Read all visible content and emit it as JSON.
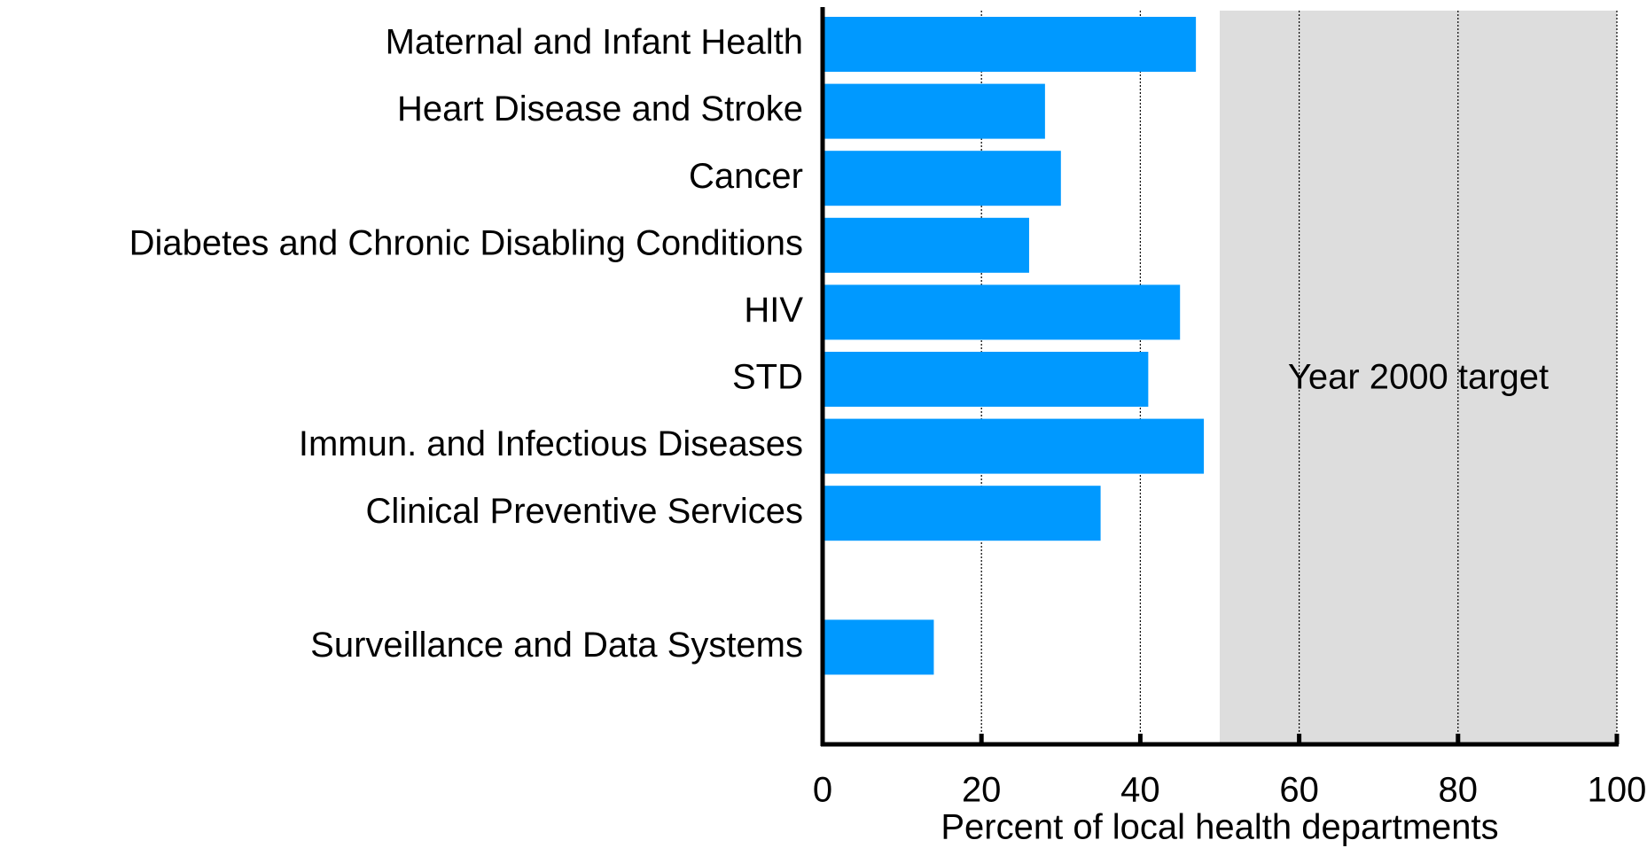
{
  "chart_data": {
    "type": "bar",
    "orientation": "horizontal",
    "categories": [
      "Maternal and Infant Health",
      "Heart Disease and Stroke",
      "Cancer",
      "Diabetes and Chronic Disabling Conditions",
      "HIV",
      "STD",
      "Immun. and Infectious Diseases",
      "Clinical Preventive Services",
      null,
      "Surveillance and Data Systems"
    ],
    "values": [
      47,
      28,
      30,
      26,
      45,
      41,
      48,
      35,
      null,
      14
    ],
    "color": "#0099ff",
    "xlabel": "Percent of local health departments",
    "xlim": [
      0,
      100
    ],
    "xticks": [
      0,
      20,
      40,
      60,
      80,
      100
    ],
    "grid": true,
    "target": {
      "label": "Year 2000 target",
      "from": 50,
      "to": 100,
      "color": "#dddddd"
    }
  }
}
